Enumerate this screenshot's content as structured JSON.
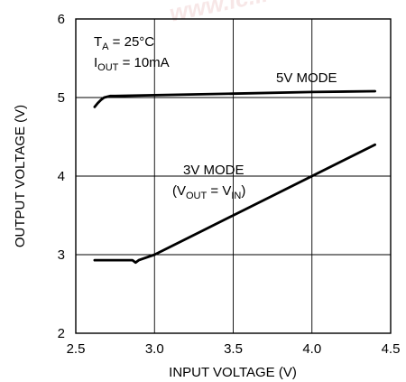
{
  "chart_data": {
    "type": "line",
    "xlabel": "INPUT VOLTAGE (V)",
    "ylabel": "OUTPUT VOLTAGE (V)",
    "xlim": [
      2.5,
      4.5
    ],
    "ylim": [
      2,
      6
    ],
    "x_ticks": [
      "2.5",
      "3.0",
      "3.5",
      "4.0",
      "4.5"
    ],
    "y_ticks": [
      "2",
      "3",
      "4",
      "5",
      "6"
    ],
    "grid": true,
    "conditions": {
      "ta_symbol": "T",
      "ta_sub": "A",
      "ta_value": " = 25°C",
      "iout_symbol": "I",
      "iout_sub": "OUT",
      "iout_value": " = 10mA"
    },
    "series": [
      {
        "name": "5V MODE",
        "x": [
          2.62,
          2.64,
          2.66,
          2.68,
          2.7,
          2.72,
          2.75,
          3.0,
          3.5,
          4.0,
          4.4
        ],
        "y": [
          4.88,
          4.93,
          4.97,
          5.0,
          5.01,
          5.02,
          5.02,
          5.03,
          5.05,
          5.07,
          5.08
        ]
      },
      {
        "name": "3V MODE",
        "x": [
          2.62,
          2.8,
          2.86,
          2.88,
          2.9,
          3.0,
          3.5,
          4.0,
          4.4
        ],
        "y": [
          2.93,
          2.93,
          2.93,
          2.9,
          2.93,
          3.0,
          3.5,
          4.0,
          4.4
        ]
      }
    ],
    "annotations": {
      "mode5": "5V MODE",
      "mode3": "3V MODE",
      "mode3_paren_open": "(V",
      "mode3_out_sub": "OUT",
      "mode3_eq": " = V",
      "mode3_in_sub": "IN",
      "mode3_paren_close": ")"
    },
    "watermark": "www.ic..."
  }
}
